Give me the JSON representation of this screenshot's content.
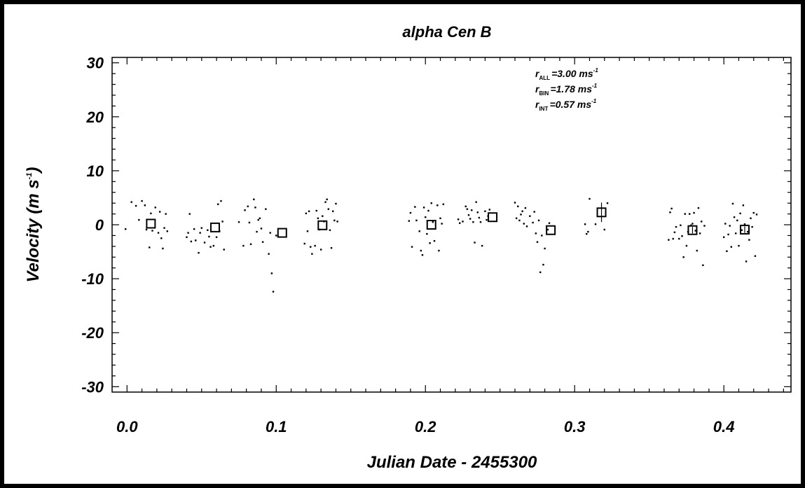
{
  "chart_data": {
    "type": "scatter",
    "title": "alpha Cen B",
    "xlabel": "Julian Date - 2455300",
    "ylabel": "Velocity  (m s",
    "ylabel_sup": "-1",
    "ylabel_close": ")",
    "xlim": [
      -0.01,
      0.445
    ],
    "ylim": [
      -31,
      31
    ],
    "xticks": [
      "0.0",
      "0.1",
      "0.2",
      "0.3",
      "0.4"
    ],
    "xtick_values": [
      0.0,
      0.1,
      0.2,
      0.3,
      0.4
    ],
    "yticks": [
      "-30",
      "-20",
      "-10",
      "0",
      "10",
      "20",
      "30"
    ],
    "ytick_values": [
      -30,
      -20,
      -10,
      0,
      10,
      20,
      30
    ],
    "annotations": [
      {
        "sym": "r",
        "sub": "ALL",
        "value": "=3.00 ms",
        "sup": "-1"
      },
      {
        "sym": "r",
        "sub": "BIN",
        "value": "=1.78 ms",
        "sup": "-1"
      },
      {
        "sym": "r",
        "sub": "INT",
        "value": "=0.57 ms",
        "sup": "-1"
      }
    ],
    "series": [
      {
        "marker": "dot",
        "points": [
          [
            -0.001,
            -0.8
          ],
          [
            0.003,
            4.2
          ],
          [
            0.006,
            3.5
          ],
          [
            0.008,
            0.9
          ],
          [
            0.01,
            4.4
          ],
          [
            0.012,
            3.6
          ],
          [
            0.013,
            -0.9
          ],
          [
            0.015,
            -4.2
          ],
          [
            0.016,
            2.1
          ],
          [
            0.017,
            -1.1
          ],
          [
            0.019,
            3.2
          ],
          [
            0.021,
            -1.5
          ],
          [
            0.022,
            2.4
          ],
          [
            0.023,
            -2.5
          ],
          [
            0.024,
            -4.4
          ],
          [
            0.025,
            -0.6
          ],
          [
            0.026,
            2.0
          ],
          [
            0.027,
            -1.2
          ],
          [
            0.04,
            -2.3
          ],
          [
            0.041,
            -1.5
          ],
          [
            0.042,
            2.0
          ],
          [
            0.043,
            -3.1
          ],
          [
            0.045,
            -0.8
          ],
          [
            0.046,
            -2.9
          ],
          [
            0.048,
            -5.2
          ],
          [
            0.049,
            -1.5
          ],
          [
            0.05,
            -0.6
          ],
          [
            0.052,
            -3.3
          ],
          [
            0.054,
            -1.0
          ],
          [
            0.055,
            -2.2
          ],
          [
            0.056,
            -4.1
          ],
          [
            0.058,
            -3.9
          ],
          [
            0.06,
            -2.3
          ],
          [
            0.061,
            3.8
          ],
          [
            0.062,
            -1.2
          ],
          [
            0.063,
            4.4
          ],
          [
            0.064,
            0.6
          ],
          [
            0.065,
            -4.6
          ],
          [
            0.075,
            0.5
          ],
          [
            0.078,
            -3.9
          ],
          [
            0.079,
            2.7
          ],
          [
            0.081,
            3.4
          ],
          [
            0.082,
            0.4
          ],
          [
            0.083,
            -3.6
          ],
          [
            0.085,
            4.7
          ],
          [
            0.086,
            3.2
          ],
          [
            0.087,
            -1.3
          ],
          [
            0.088,
            0.9
          ],
          [
            0.089,
            1.2
          ],
          [
            0.09,
            -0.7
          ],
          [
            0.091,
            -3.2
          ],
          [
            0.093,
            2.9
          ],
          [
            0.095,
            -5.4
          ],
          [
            0.096,
            -1.5
          ],
          [
            0.097,
            -9.0
          ],
          [
            0.098,
            -12.4
          ],
          [
            0.1,
            -2.0
          ],
          [
            0.119,
            -3.5
          ],
          [
            0.12,
            2.1
          ],
          [
            0.121,
            -1.2
          ],
          [
            0.122,
            2.5
          ],
          [
            0.123,
            -4.1
          ],
          [
            0.124,
            -5.4
          ],
          [
            0.126,
            -3.9
          ],
          [
            0.127,
            2.6
          ],
          [
            0.128,
            1.2
          ],
          [
            0.129,
            -0.9
          ],
          [
            0.13,
            -4.6
          ],
          [
            0.131,
            1.6
          ],
          [
            0.132,
            0.6
          ],
          [
            0.133,
            4.2
          ],
          [
            0.134,
            4.7
          ],
          [
            0.135,
            2.9
          ],
          [
            0.136,
            -1.0
          ],
          [
            0.137,
            -4.3
          ],
          [
            0.138,
            2.5
          ],
          [
            0.139,
            0.8
          ],
          [
            0.14,
            3.9
          ],
          [
            0.141,
            0.6
          ],
          [
            0.189,
            0.7
          ],
          [
            0.19,
            2.2
          ],
          [
            0.191,
            -4.1
          ],
          [
            0.193,
            3.3
          ],
          [
            0.194,
            0.8
          ],
          [
            0.196,
            -1.2
          ],
          [
            0.197,
            -4.8
          ],
          [
            0.198,
            -5.6
          ],
          [
            0.199,
            3.2
          ],
          [
            0.2,
            1.4
          ],
          [
            0.201,
            -1.7
          ],
          [
            0.202,
            2.6
          ],
          [
            0.203,
            -3.4
          ],
          [
            0.204,
            4.0
          ],
          [
            0.205,
            0.5
          ],
          [
            0.206,
            -3.0
          ],
          [
            0.208,
            3.6
          ],
          [
            0.209,
            -4.8
          ],
          [
            0.21,
            1.2
          ],
          [
            0.211,
            0.2
          ],
          [
            0.212,
            3.8
          ],
          [
            0.222,
            1.0
          ],
          [
            0.223,
            0.3
          ],
          [
            0.225,
            0.6
          ],
          [
            0.227,
            3.4
          ],
          [
            0.228,
            2.9
          ],
          [
            0.229,
            1.8
          ],
          [
            0.23,
            1.1
          ],
          [
            0.231,
            2.7
          ],
          [
            0.232,
            0.5
          ],
          [
            0.233,
            -3.3
          ],
          [
            0.234,
            4.2
          ],
          [
            0.235,
            2.3
          ],
          [
            0.236,
            1.3
          ],
          [
            0.237,
            0.5
          ],
          [
            0.238,
            -3.9
          ],
          [
            0.24,
            2.5
          ],
          [
            0.241,
            0.9
          ],
          [
            0.242,
            1.6
          ],
          [
            0.243,
            2.8
          ],
          [
            0.26,
            4.1
          ],
          [
            0.261,
            1.2
          ],
          [
            0.262,
            3.4
          ],
          [
            0.263,
            0.8
          ],
          [
            0.264,
            1.9
          ],
          [
            0.265,
            2.5
          ],
          [
            0.266,
            0.2
          ],
          [
            0.267,
            3.1
          ],
          [
            0.268,
            -0.3
          ],
          [
            0.27,
            1.6
          ],
          [
            0.272,
            0.4
          ],
          [
            0.273,
            2.4
          ],
          [
            0.274,
            -1.6
          ],
          [
            0.275,
            -3.2
          ],
          [
            0.276,
            0.8
          ],
          [
            0.277,
            -8.8
          ],
          [
            0.278,
            -2.0
          ],
          [
            0.279,
            -7.4
          ],
          [
            0.28,
            -4.4
          ],
          [
            0.282,
            -0.9
          ],
          [
            0.283,
            0.3
          ],
          [
            0.307,
            0.1
          ],
          [
            0.308,
            -1.7
          ],
          [
            0.309,
            -1.3
          ],
          [
            0.31,
            4.8
          ],
          [
            0.314,
            0.1
          ],
          [
            0.32,
            -0.9
          ],
          [
            0.322,
            4.0
          ],
          [
            0.363,
            -2.8
          ],
          [
            0.364,
            2.3
          ],
          [
            0.365,
            3.0
          ],
          [
            0.366,
            -2.6
          ],
          [
            0.367,
            -1.4
          ],
          [
            0.368,
            -0.4
          ],
          [
            0.37,
            -2.6
          ],
          [
            0.371,
            -0.1
          ],
          [
            0.372,
            -2.1
          ],
          [
            0.373,
            -6.0
          ],
          [
            0.374,
            2.0
          ],
          [
            0.375,
            -3.9
          ],
          [
            0.376,
            -1.3
          ],
          [
            0.377,
            2.0
          ],
          [
            0.378,
            -0.1
          ],
          [
            0.379,
            0.2
          ],
          [
            0.38,
            2.2
          ],
          [
            0.381,
            -1.1
          ],
          [
            0.382,
            -4.8
          ],
          [
            0.383,
            3.1
          ],
          [
            0.384,
            -1.6
          ],
          [
            0.385,
            0.6
          ],
          [
            0.386,
            -7.5
          ],
          [
            0.387,
            -0.2
          ],
          [
            0.4,
            -2.3
          ],
          [
            0.401,
            0.2
          ],
          [
            0.402,
            -4.9
          ],
          [
            0.403,
            -1.8
          ],
          [
            0.404,
            -0.2
          ],
          [
            0.405,
            -4.1
          ],
          [
            0.406,
            3.9
          ],
          [
            0.407,
            1.4
          ],
          [
            0.408,
            -1.6
          ],
          [
            0.409,
            0.8
          ],
          [
            0.41,
            -3.9
          ],
          [
            0.411,
            2.1
          ],
          [
            0.412,
            -1.0
          ],
          [
            0.413,
            3.6
          ],
          [
            0.414,
            0.1
          ],
          [
            0.415,
            -6.8
          ],
          [
            0.416,
            -1.3
          ],
          [
            0.417,
            -2.8
          ],
          [
            0.418,
            1.2
          ],
          [
            0.419,
            -0.4
          ],
          [
            0.42,
            2.2
          ],
          [
            0.421,
            -5.8
          ],
          [
            0.422,
            1.9
          ]
        ]
      },
      {
        "marker": "square",
        "points": [
          [
            0.016,
            0.2,
            0.0
          ],
          [
            0.059,
            -0.5,
            0.0
          ],
          [
            0.104,
            -1.5,
            0.0
          ],
          [
            0.131,
            -0.1,
            0.0
          ],
          [
            0.204,
            0.0,
            0.0
          ],
          [
            0.245,
            1.4,
            0.0
          ],
          [
            0.284,
            -1.0,
            0.0
          ],
          [
            0.318,
            2.3,
            1.8
          ],
          [
            0.379,
            -1.0,
            0.6
          ],
          [
            0.414,
            -0.9,
            0.6
          ]
        ]
      }
    ]
  }
}
